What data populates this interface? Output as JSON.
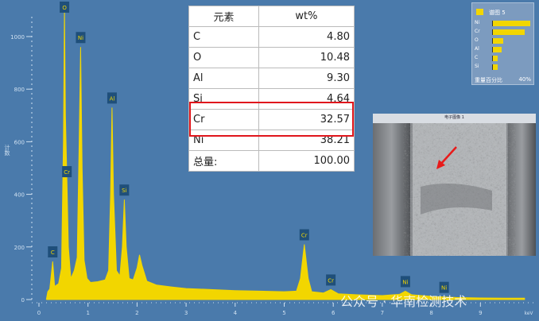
{
  "chart_data": {
    "type": "line",
    "title": "",
    "xlabel": "keV",
    "ylabel": "计数",
    "xlim": [
      0,
      10
    ],
    "ylim": [
      0,
      1100
    ],
    "xticks": [
      0,
      1,
      2,
      3,
      4,
      5,
      6,
      7,
      8,
      9
    ],
    "yticks": [
      0,
      200,
      400,
      600,
      800,
      1000
    ],
    "grid": false,
    "fill_color": "#f2d600",
    "spectrum": [
      [
        0.15,
        0
      ],
      [
        0.18,
        30
      ],
      [
        0.22,
        40
      ],
      [
        0.28,
        145
      ],
      [
        0.32,
        50
      ],
      [
        0.4,
        60
      ],
      [
        0.46,
        120
      ],
      [
        0.5,
        600
      ],
      [
        0.52,
        1110
      ],
      [
        0.54,
        700
      ],
      [
        0.57,
        450
      ],
      [
        0.6,
        200
      ],
      [
        0.65,
        80
      ],
      [
        0.72,
        110
      ],
      [
        0.78,
        160
      ],
      [
        0.82,
        600
      ],
      [
        0.85,
        960
      ],
      [
        0.88,
        500
      ],
      [
        0.92,
        150
      ],
      [
        0.98,
        80
      ],
      [
        1.05,
        65
      ],
      [
        1.2,
        68
      ],
      [
        1.35,
        75
      ],
      [
        1.42,
        110
      ],
      [
        1.46,
        400
      ],
      [
        1.49,
        730
      ],
      [
        1.52,
        400
      ],
      [
        1.58,
        110
      ],
      [
        1.65,
        90
      ],
      [
        1.7,
        200
      ],
      [
        1.74,
        380
      ],
      [
        1.78,
        200
      ],
      [
        1.84,
        80
      ],
      [
        1.92,
        75
      ],
      [
        2.0,
        120
      ],
      [
        2.05,
        170
      ],
      [
        2.1,
        130
      ],
      [
        2.2,
        70
      ],
      [
        2.4,
        55
      ],
      [
        2.7,
        48
      ],
      [
        3.0,
        42
      ],
      [
        3.5,
        38
      ],
      [
        4.0,
        34
      ],
      [
        4.5,
        32
      ],
      [
        5.0,
        30
      ],
      [
        5.25,
        32
      ],
      [
        5.33,
        80
      ],
      [
        5.41,
        210
      ],
      [
        5.49,
        80
      ],
      [
        5.56,
        30
      ],
      [
        5.8,
        25
      ],
      [
        5.95,
        38
      ],
      [
        6.1,
        22
      ],
      [
        6.5,
        18
      ],
      [
        7.0,
        15
      ],
      [
        7.35,
        20
      ],
      [
        7.47,
        32
      ],
      [
        7.6,
        18
      ],
      [
        8.0,
        12
      ],
      [
        8.26,
        10
      ],
      [
        8.5,
        8
      ],
      [
        9.0,
        6
      ],
      [
        9.5,
        5
      ],
      [
        9.9,
        5
      ]
    ],
    "peak_labels": [
      {
        "el": "C",
        "keV": 0.28
      },
      {
        "el": "O",
        "keV": 0.52
      },
      {
        "el": "Cr",
        "keV": 0.57
      },
      {
        "el": "Ni",
        "keV": 0.85
      },
      {
        "el": "Al",
        "keV": 1.49
      },
      {
        "el": "Si",
        "keV": 1.74
      },
      {
        "el": "Cr",
        "keV": 5.41
      },
      {
        "el": "Cr",
        "keV": 5.95
      },
      {
        "el": "Ni",
        "keV": 7.47
      },
      {
        "el": "Ni",
        "keV": 8.26
      }
    ]
  },
  "table": {
    "header": [
      "元素",
      "wt%"
    ],
    "rows": [
      [
        "C",
        "4.80"
      ],
      [
        "O",
        "10.48"
      ],
      [
        "Al",
        "9.30"
      ],
      [
        "Si",
        "4.64"
      ],
      [
        "Cr",
        "32.57"
      ],
      [
        "Ni",
        "38.21"
      ],
      [
        "总量:",
        "100.00"
      ]
    ],
    "highlight_color": "#e0161c"
  },
  "legend": {
    "series": "谱图 5",
    "footer": "重量百分比",
    "scale": "40%",
    "scale_max": 40,
    "bars": [
      [
        "Ni",
        38.21
      ],
      [
        "Cr",
        32.57
      ],
      [
        "O",
        10.48
      ],
      [
        "Al",
        9.3
      ],
      [
        "C",
        4.8
      ],
      [
        "Si",
        4.64
      ]
    ]
  },
  "sem": {
    "title": "电子图像 1"
  },
  "watermark": "公众号 · 华南检测技术"
}
